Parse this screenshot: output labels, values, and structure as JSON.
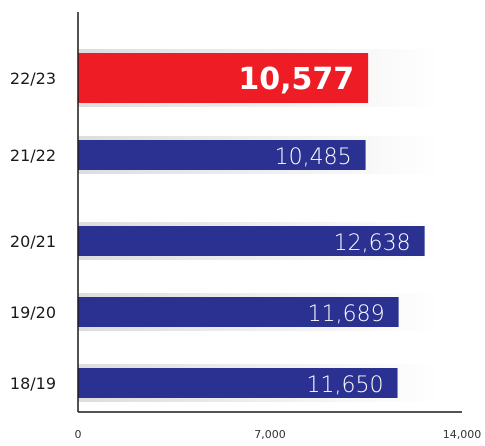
{
  "chart_data": {
    "type": "bar",
    "orientation": "horizontal",
    "categories": [
      "22/23",
      "21/22",
      "20/21",
      "19/20",
      "18/19"
    ],
    "values": [
      10577,
      10485,
      12638,
      11689,
      11650
    ],
    "value_labels": [
      "10,577",
      "10,485",
      "12,638",
      "11,689",
      "11,650"
    ],
    "highlight_index": 0,
    "xlim": [
      0,
      14000
    ],
    "x_ticks": [
      0,
      7000,
      14000
    ],
    "x_tick_labels": [
      "0",
      "7,000",
      "14,000"
    ],
    "grid": false,
    "legend": "none",
    "colors": {
      "bar": "#2b3190",
      "highlight": "#ee1c25",
      "shadow": "#d9d9d9"
    }
  }
}
